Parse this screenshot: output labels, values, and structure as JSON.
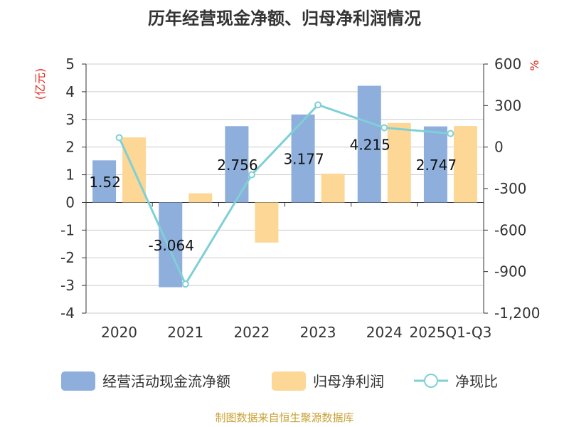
{
  "chart_data": {
    "type": "bar",
    "title": "历年经营现金净额、归母净利润情况",
    "categories": [
      "2020",
      "2021",
      "2022",
      "2023",
      "2024",
      "2025Q1-Q3"
    ],
    "left_axis": {
      "unit": "(亿元)",
      "ylim": [
        -4,
        5
      ],
      "ticks": [
        5,
        4,
        3,
        2,
        1,
        0,
        -1,
        -2,
        -3,
        -4
      ]
    },
    "right_axis": {
      "unit": "%",
      "ylim": [
        -1200,
        600
      ],
      "ticks": [
        "600",
        "300",
        "0",
        "-300",
        "-600",
        "-900",
        "-1,200"
      ],
      "tick_values": [
        600,
        300,
        0,
        -300,
        -600,
        -900,
        -1200
      ]
    },
    "series": [
      {
        "name": "经营活动现金流净额",
        "type": "bar",
        "axis": "left",
        "color": "#8eaedc",
        "values": [
          1.52,
          -3.064,
          2.756,
          3.177,
          4.215,
          2.747
        ],
        "labels": [
          "1.52",
          "-3.064",
          "2.756",
          "3.177",
          "4.215",
          "2.747"
        ]
      },
      {
        "name": "归母净利润",
        "type": "bar",
        "axis": "left",
        "color": "#fdd795",
        "values": [
          2.35,
          0.33,
          -1.45,
          1.04,
          2.87,
          2.76
        ]
      },
      {
        "name": "净现比",
        "type": "line",
        "axis": "right",
        "color": "#7ed0d6",
        "values": [
          68,
          -990,
          -200,
          305,
          140,
          98
        ]
      }
    ],
    "grid": true,
    "legend_position": "bottom"
  },
  "source": "制图数据来自恒生聚源数据库"
}
